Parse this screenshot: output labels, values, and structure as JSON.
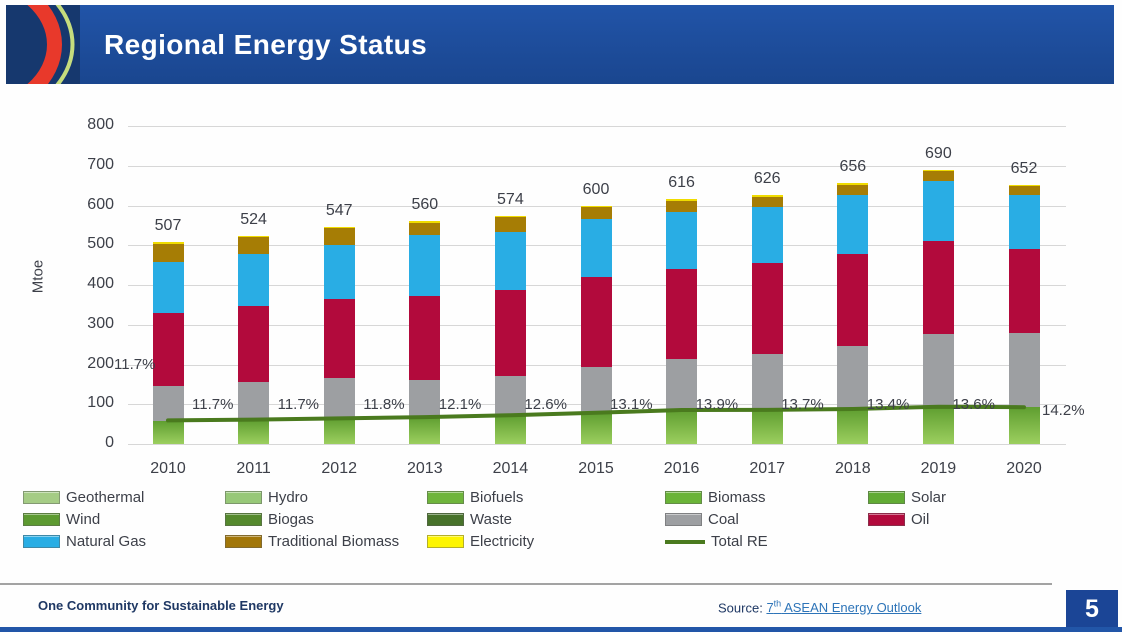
{
  "header": {
    "title": "Regional Energy Status"
  },
  "chart_data": {
    "type": "bar",
    "subtype": "stacked-bars-with-total-re-line",
    "title": "",
    "xlabel": "",
    "ylabel": "Mtoe",
    "ylim": [
      0,
      800
    ],
    "ytick_step": 100,
    "grid": true,
    "legend_position": "bottom",
    "categories": [
      "2010",
      "2011",
      "2012",
      "2013",
      "2014",
      "2015",
      "2016",
      "2017",
      "2018",
      "2019",
      "2020"
    ],
    "totals": [
      507,
      524,
      547,
      560,
      574,
      600,
      616,
      626,
      656,
      690,
      652
    ],
    "series": [
      {
        "name": "Renewables (Geothermal, Hydro, Biofuels, Biomass, Solar, Wind, Biogas, Waste)",
        "gradient": [
          "#5f9e30",
          "#9ccf5f"
        ],
        "values": [
          59,
          61,
          65,
          68,
          72,
          79,
          86,
          86,
          88,
          94,
          93
        ]
      },
      {
        "name": "Coal",
        "color": "#9d9fa2",
        "values": [
          88,
          95,
          100,
          92,
          98,
          115,
          127,
          140,
          158,
          183,
          185
        ]
      },
      {
        "name": "Oil",
        "color": "#b20a3c",
        "values": [
          182,
          192,
          200,
          212,
          217,
          225,
          228,
          230,
          232,
          233,
          212
        ]
      },
      {
        "name": "Natural Gas",
        "color": "#29ade4",
        "values": [
          130,
          130,
          136,
          154,
          147,
          147,
          143,
          140,
          148,
          152,
          136
        ]
      },
      {
        "name": "Traditional Biomass",
        "color": "#a67d05",
        "values": [
          44,
          42,
          42,
          30,
          36,
          30,
          28,
          26,
          26,
          24,
          23
        ]
      },
      {
        "name": "Electricity",
        "color": "#f0dc00",
        "values": [
          4,
          4,
          4,
          4,
          4,
          4,
          4,
          4,
          4,
          4,
          3
        ]
      }
    ],
    "line": {
      "name": "Total RE",
      "color": "#4a7a1e",
      "share_percent": [
        11.7,
        11.7,
        11.8,
        12.1,
        12.6,
        13.1,
        13.9,
        13.7,
        13.4,
        13.6,
        14.2
      ],
      "labels": [
        "11.7%",
        "11.7%",
        "11.8%",
        "12.1%",
        "12.6%",
        "13.1%",
        "13.9%",
        "13.7%",
        "13.4%",
        "13.6%",
        "14.2%"
      ]
    },
    "stray_label": "11.7%"
  },
  "legend": {
    "items": [
      {
        "label": "Geothermal",
        "color": "#a5cc85",
        "swatch": "box",
        "col": 0,
        "row": 0
      },
      {
        "label": "Hydro",
        "color": "#97c878",
        "swatch": "box",
        "col": 1,
        "row": 0
      },
      {
        "label": "Biofuels",
        "color": "#6fb53c",
        "swatch": "box",
        "col": 2,
        "row": 0
      },
      {
        "label": "Biomass",
        "color": "#6ab438",
        "swatch": "box",
        "col": 3,
        "row": 0
      },
      {
        "label": "Solar",
        "color": "#61ab34",
        "swatch": "box",
        "col": 4,
        "row": 0
      },
      {
        "label": "Wind",
        "color": "#5d9a31",
        "swatch": "box",
        "col": 0,
        "row": 1
      },
      {
        "label": "Biogas",
        "color": "#55892d",
        "swatch": "box",
        "col": 1,
        "row": 1
      },
      {
        "label": "Waste",
        "color": "#47722a",
        "swatch": "box",
        "col": 2,
        "row": 1
      },
      {
        "label": "Coal",
        "color": "#9d9fa2",
        "swatch": "box",
        "col": 3,
        "row": 1
      },
      {
        "label": "Oil",
        "color": "#b20a3c",
        "swatch": "box",
        "col": 4,
        "row": 1
      },
      {
        "label": "Natural Gas",
        "color": "#29ade4",
        "swatch": "box",
        "col": 0,
        "row": 2
      },
      {
        "label": "Traditional Biomass",
        "color": "#a2770a",
        "swatch": "box",
        "col": 1,
        "row": 2
      },
      {
        "label": "Electricity",
        "color": "#fdf500",
        "swatch": "box",
        "col": 2,
        "row": 2
      },
      {
        "label": "Total RE",
        "color": "#4a7a1e",
        "swatch": "line",
        "col": 3,
        "row": 2
      }
    ]
  },
  "footer": {
    "tagline": "One Community for Sustainable Energy",
    "source_label": "Source:",
    "source_link": {
      "num": "7",
      "sup": "th",
      "rest": " ASEAN Energy Outlook"
    },
    "page_number": "5"
  }
}
